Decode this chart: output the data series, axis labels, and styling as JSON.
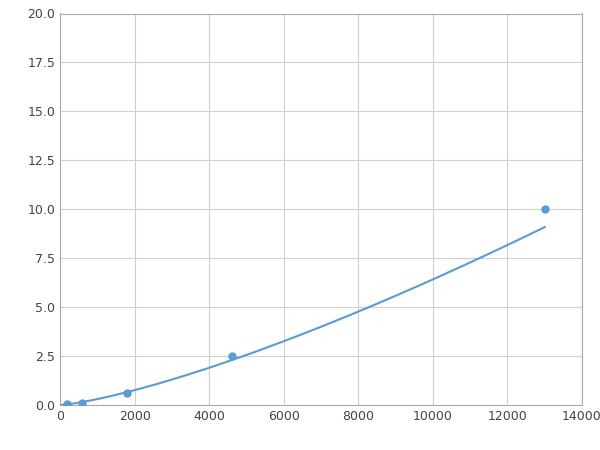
{
  "x_points": [
    200,
    600,
    1800,
    4600,
    13000
  ],
  "y_points": [
    0.05,
    0.1,
    0.6,
    2.5,
    10.0
  ],
  "line_color": "#5b9bd5",
  "marker_color": "#5b9bd5",
  "marker_size": 5,
  "line_width": 1.5,
  "xlim": [
    0,
    14000
  ],
  "ylim": [
    0,
    20.0
  ],
  "xticks": [
    0,
    2000,
    4000,
    6000,
    8000,
    10000,
    12000,
    14000
  ],
  "yticks": [
    0.0,
    2.5,
    5.0,
    7.5,
    10.0,
    12.5,
    15.0,
    17.5,
    20.0
  ],
  "grid_color": "#d0d0d0",
  "background_color": "#ffffff",
  "figure_background": "#ffffff"
}
